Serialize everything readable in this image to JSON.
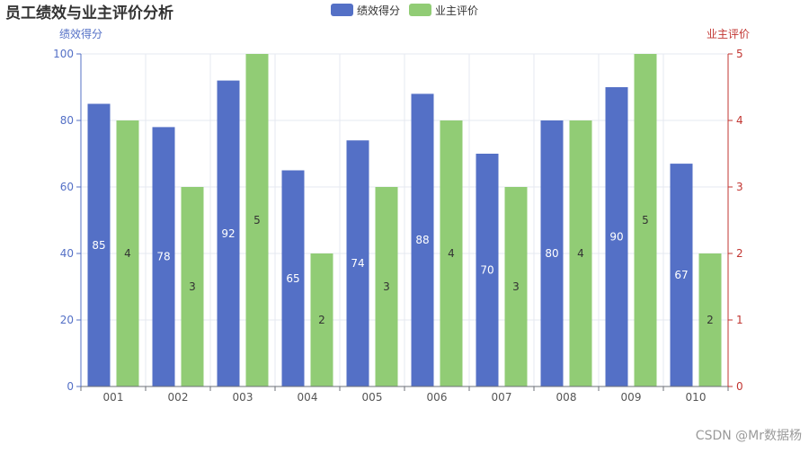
{
  "chart_data": {
    "type": "bar",
    "title": "员工绩效与业主评价分析",
    "categories": [
      "001",
      "002",
      "003",
      "004",
      "005",
      "006",
      "007",
      "008",
      "009",
      "010"
    ],
    "series": [
      {
        "name": "绩效得分",
        "axis": "left",
        "color": "#5470c6",
        "values": [
          85,
          78,
          92,
          65,
          74,
          88,
          70,
          80,
          90,
          67
        ],
        "value_labels": [
          "85",
          "78",
          "92",
          "65",
          "74",
          "88",
          "70",
          "80",
          "90",
          "67"
        ]
      },
      {
        "name": "业主评价",
        "axis": "right",
        "color": "#91cc75",
        "values": [
          4,
          3,
          5,
          2,
          3,
          4,
          3,
          4,
          5,
          2
        ],
        "value_labels": [
          "4",
          "3",
          "5",
          "2",
          "3",
          "4",
          "3",
          "4",
          "5",
          "2"
        ]
      }
    ],
    "y_left": {
      "label": "绩效得分",
      "min": 0,
      "max": 100,
      "ticks": [
        0,
        20,
        40,
        60,
        80,
        100
      ],
      "tick_labels": [
        "0",
        "20",
        "40",
        "60",
        "80",
        "100"
      ],
      "color": "#5470c6"
    },
    "y_right": {
      "label": "业主评价",
      "min": 0,
      "max": 5,
      "ticks": [
        0,
        1,
        2,
        3,
        4,
        5
      ],
      "tick_labels": [
        "0",
        "1",
        "2",
        "3",
        "4",
        "5"
      ],
      "color": "#c23531"
    },
    "grid": true,
    "legend_position": "top-center"
  },
  "watermark": "CSDN @Mr数据杨"
}
